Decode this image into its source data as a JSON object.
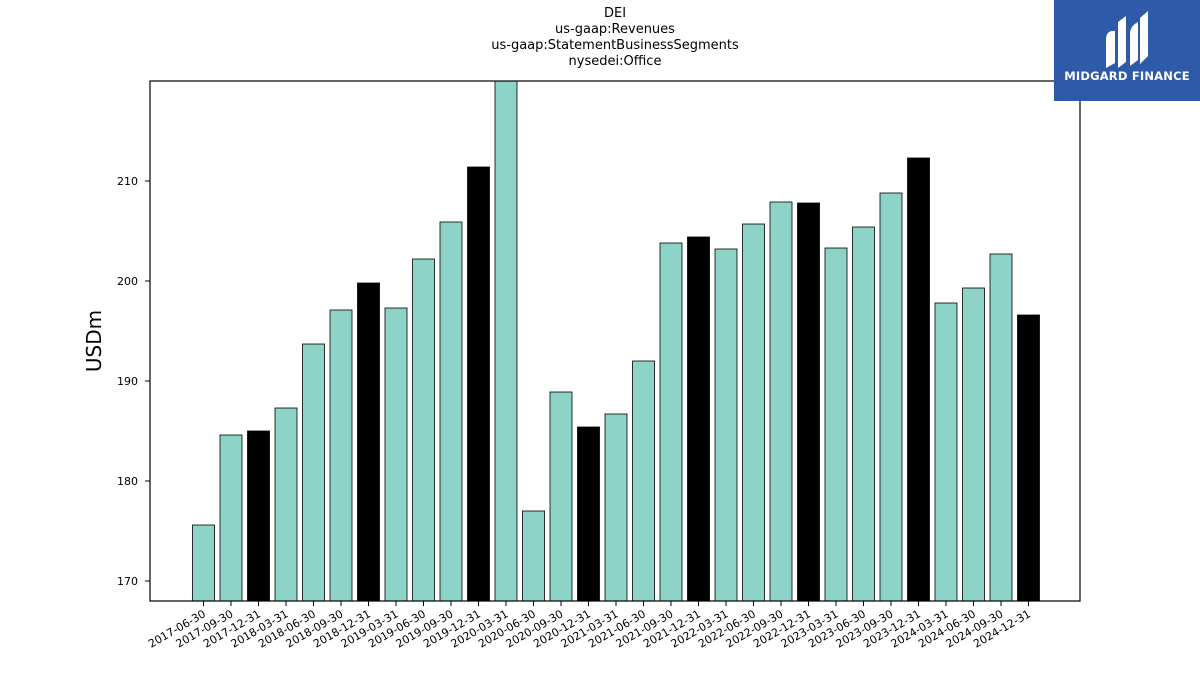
{
  "chart_data": {
    "type": "bar",
    "title_lines": [
      "DEI",
      "us-gaap:Revenues",
      "us-gaap:StatementBusinessSegments",
      "nysedei:Office"
    ],
    "xlabel": "",
    "ylabel": "USDm",
    "ylim": [
      168,
      220
    ],
    "yticks": [
      170,
      180,
      190,
      200,
      210
    ],
    "grid": false,
    "categories": [
      "2017-06-30",
      "2017-09-30",
      "2017-12-31",
      "2018-03-31",
      "2018-06-30",
      "2018-09-30",
      "2018-12-31",
      "2019-03-31",
      "2019-06-30",
      "2019-09-30",
      "2019-12-31",
      "2020-03-31",
      "2020-06-30",
      "2020-09-30",
      "2020-12-31",
      "2021-03-31",
      "2021-06-30",
      "2021-09-30",
      "2021-12-31",
      "2022-03-31",
      "2022-06-30",
      "2022-09-30",
      "2022-12-31",
      "2023-03-31",
      "2023-06-30",
      "2023-09-30",
      "2023-12-31",
      "2024-03-31",
      "2024-06-30",
      "2024-09-30",
      "2024-12-31"
    ],
    "values": [
      175.6,
      184.6,
      185.0,
      187.3,
      193.7,
      197.1,
      199.8,
      197.3,
      202.2,
      205.9,
      211.4,
      220.5,
      177.0,
      188.9,
      185.4,
      186.7,
      192.0,
      203.8,
      204.4,
      203.2,
      205.7,
      207.9,
      207.8,
      203.3,
      205.4,
      208.8,
      212.3,
      197.8,
      199.3,
      202.7,
      196.6
    ],
    "bar_colors": [
      "#8dd3c7",
      "#8dd3c7",
      "#000000",
      "#8dd3c7",
      "#8dd3c7",
      "#8dd3c7",
      "#000000",
      "#8dd3c7",
      "#8dd3c7",
      "#8dd3c7",
      "#000000",
      "#8dd3c7",
      "#8dd3c7",
      "#8dd3c7",
      "#000000",
      "#8dd3c7",
      "#8dd3c7",
      "#8dd3c7",
      "#000000",
      "#8dd3c7",
      "#8dd3c7",
      "#8dd3c7",
      "#000000",
      "#8dd3c7",
      "#8dd3c7",
      "#8dd3c7",
      "#000000",
      "#8dd3c7",
      "#8dd3c7",
      "#8dd3c7",
      "#000000"
    ]
  },
  "logo": {
    "text": "MIDGARD FINANCE",
    "background": "#2e5aa8",
    "icon": "midgard-logo-icon"
  }
}
